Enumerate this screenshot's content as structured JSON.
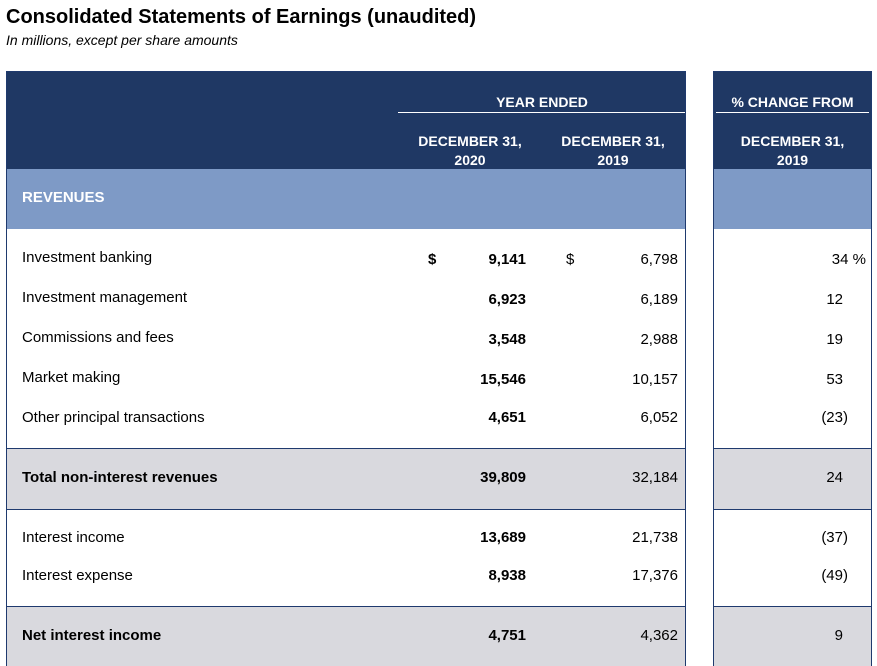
{
  "title": "Consolidated Statements of Earnings (unaudited)",
  "subtitle": "In millions, except per share amounts",
  "header": {
    "year_ended": "YEAR ENDED",
    "col_2020_line1": "DECEMBER 31,",
    "col_2020_line2": "2020",
    "col_2019_line1": "DECEMBER 31,",
    "col_2019_line2": "2019",
    "pct_change": "% CHANGE FROM",
    "pct_col_line1": "DECEMBER 31,",
    "pct_col_line2": "2019"
  },
  "section": "REVENUES",
  "currency_symbol": "$",
  "rows": [
    {
      "label": "Investment banking",
      "v2020": "9,141",
      "v2019": "6,798",
      "pct": "34 %"
    },
    {
      "label": "Investment management",
      "v2020": "6,923",
      "v2019": "6,189",
      "pct": "12"
    },
    {
      "label": "Commissions and fees",
      "v2020": "3,548",
      "v2019": "2,988",
      "pct": "19"
    },
    {
      "label": "Market making",
      "v2020": "15,546",
      "v2019": "10,157",
      "pct": "53"
    },
    {
      "label": "Other principal transactions",
      "v2020": "4,651",
      "v2019": "6,052",
      "pct": "(23)"
    },
    {
      "label": "Total non-interest revenues",
      "v2020": "39,809",
      "v2019": "32,184",
      "pct": "24"
    },
    {
      "label": "Interest income",
      "v2020": "13,689",
      "v2019": "21,738",
      "pct": "(37)"
    },
    {
      "label": "Interest expense",
      "v2020": "8,938",
      "v2019": "17,376",
      "pct": "(49)"
    },
    {
      "label": "Net interest income",
      "v2020": "4,751",
      "v2019": "4,362",
      "pct": "9"
    }
  ]
}
